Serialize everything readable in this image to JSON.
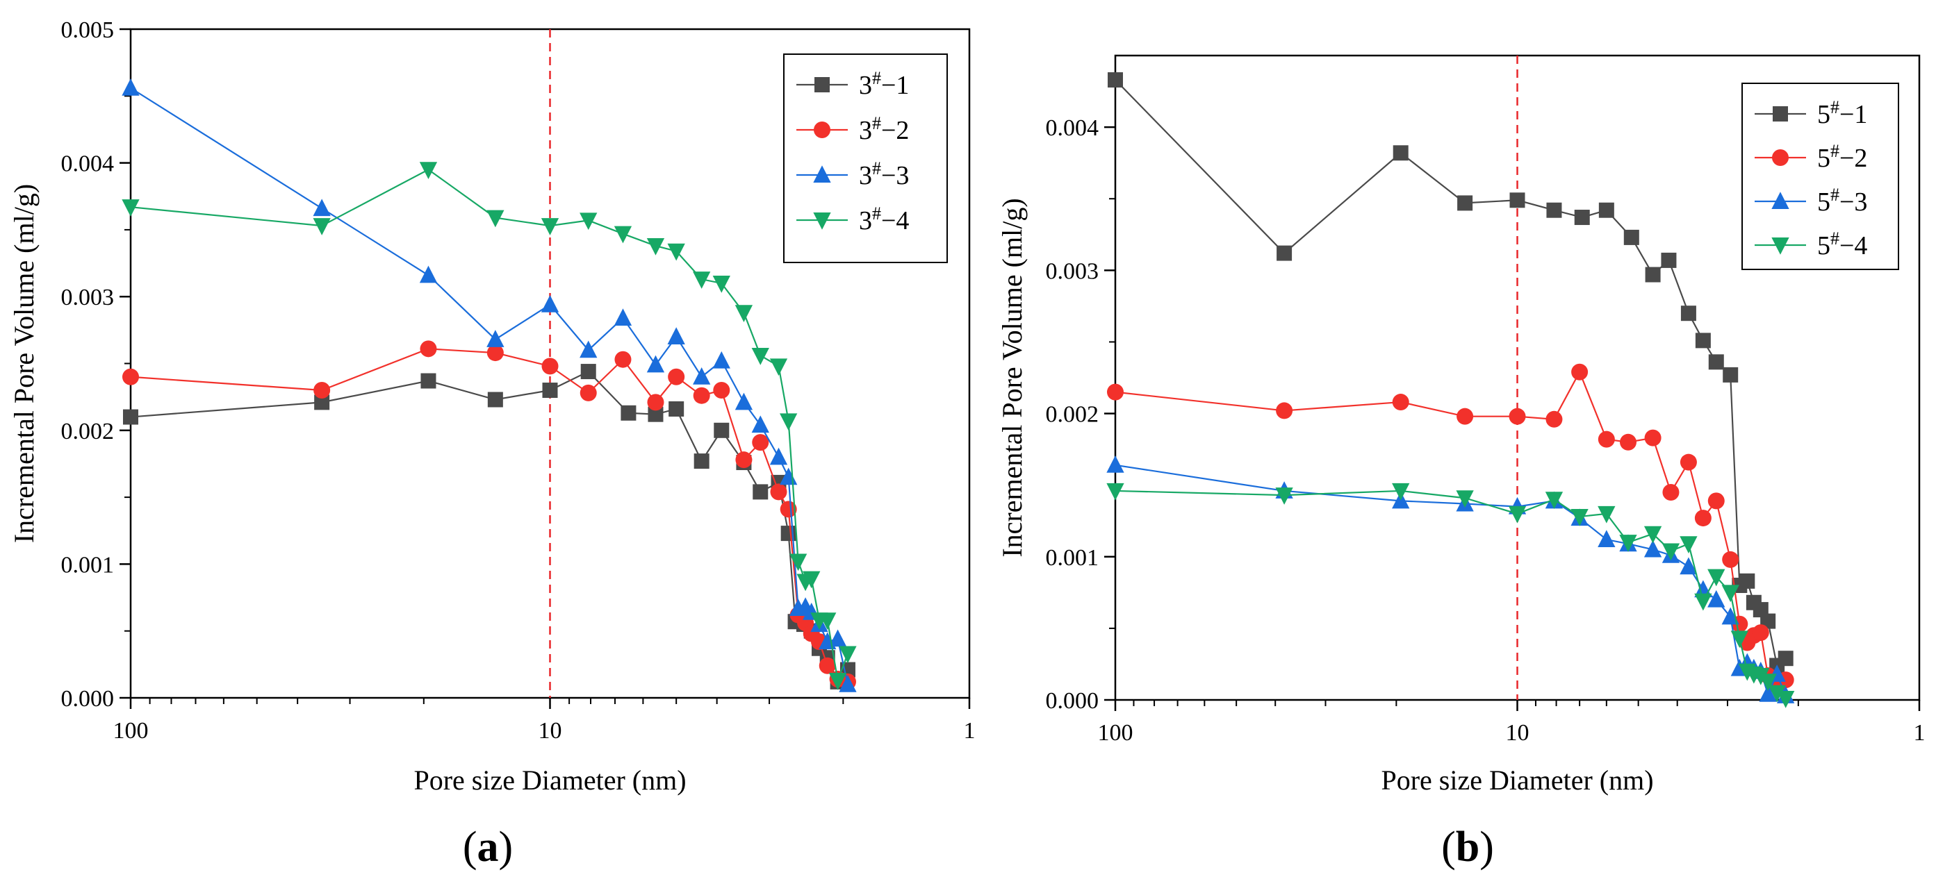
{
  "chart_data": [
    {
      "type": "line",
      "panel_label": "(a)",
      "xlabel": "Pore size Diameter (nm)",
      "ylabel": "Incremental Pore Volume (ml/g)",
      "x_scale": "log",
      "x_reversed": true,
      "xlim": [
        100,
        1
      ],
      "ylim": [
        0,
        0.005
      ],
      "xticks": [
        "100",
        "10",
        "1"
      ],
      "yticks": [
        "0.000",
        "0.001",
        "0.002",
        "0.003",
        "0.004",
        "0.005"
      ],
      "reference_line": {
        "x": 10,
        "color": "#e8262a",
        "style": "dashed"
      },
      "legend_position": "top-right",
      "grid": false,
      "series": [
        {
          "name": "3#−1",
          "name_base": "3",
          "name_sup": "#",
          "name_tail": "−1",
          "color": "#4a4a4a",
          "marker": "square",
          "points": [
            [
              100,
              0.0021
            ],
            [
              35,
              0.00221
            ],
            [
              19.5,
              0.00237
            ],
            [
              13.5,
              0.00223
            ],
            [
              10,
              0.0023
            ],
            [
              8.1,
              0.00244
            ],
            [
              6.5,
              0.00213
            ],
            [
              5.6,
              0.00212
            ],
            [
              5.0,
              0.00216
            ],
            [
              4.35,
              0.00177
            ],
            [
              3.9,
              0.002
            ],
            [
              3.45,
              0.00176
            ],
            [
              3.15,
              0.00154
            ],
            [
              2.85,
              0.00161
            ],
            [
              2.7,
              0.00123
            ],
            [
              2.6,
              0.00057
            ],
            [
              2.48,
              0.00055
            ],
            [
              2.38,
              0.0005
            ],
            [
              2.28,
              0.00037
            ],
            [
              2.18,
              0.0003
            ],
            [
              2.06,
              0.00012
            ],
            [
              1.95,
              0.00021
            ]
          ]
        },
        {
          "name": "3#−2",
          "name_base": "3",
          "name_sup": "#",
          "name_tail": "−2",
          "color": "#f2312b",
          "marker": "circle",
          "points": [
            [
              100,
              0.0024
            ],
            [
              35,
              0.0023
            ],
            [
              19.5,
              0.00261
            ],
            [
              13.5,
              0.00258
            ],
            [
              10,
              0.00248
            ],
            [
              8.1,
              0.00228
            ],
            [
              6.7,
              0.00253
            ],
            [
              5.6,
              0.00221
            ],
            [
              5.0,
              0.0024
            ],
            [
              4.35,
              0.00226
            ],
            [
              3.9,
              0.0023
            ],
            [
              3.45,
              0.00178
            ],
            [
              3.15,
              0.00191
            ],
            [
              2.85,
              0.00154
            ],
            [
              2.7,
              0.00141
            ],
            [
              2.56,
              0.00062
            ],
            [
              2.46,
              0.00056
            ],
            [
              2.38,
              0.00048
            ],
            [
              2.28,
              0.00042
            ],
            [
              2.18,
              0.00024
            ],
            [
              2.06,
              0.00014
            ],
            [
              1.95,
              0.00012
            ]
          ]
        },
        {
          "name": "3#−3",
          "name_base": "3",
          "name_sup": "#",
          "name_tail": "−3",
          "color": "#1a6ddb",
          "marker": "triangle-up",
          "points": [
            [
              100,
              0.00456
            ],
            [
              35,
              0.00366
            ],
            [
              19.5,
              0.00316
            ],
            [
              13.5,
              0.00268
            ],
            [
              10,
              0.00294
            ],
            [
              8.1,
              0.0026
            ],
            [
              6.7,
              0.00284
            ],
            [
              5.6,
              0.00249
            ],
            [
              5.0,
              0.0027
            ],
            [
              4.35,
              0.0024
            ],
            [
              3.9,
              0.00252
            ],
            [
              3.45,
              0.00221
            ],
            [
              3.15,
              0.00204
            ],
            [
              2.85,
              0.0018
            ],
            [
              2.7,
              0.00165
            ],
            [
              2.56,
              0.00067
            ],
            [
              2.46,
              0.00068
            ],
            [
              2.38,
              0.00064
            ],
            [
              2.28,
              0.00055
            ],
            [
              2.18,
              0.00042
            ],
            [
              2.06,
              0.00044
            ],
            [
              1.95,
              0.0001
            ]
          ]
        },
        {
          "name": "3#−4",
          "name_base": "3",
          "name_sup": "#",
          "name_tail": "−4",
          "color": "#17a865",
          "marker": "triangle-down",
          "points": [
            [
              100,
              0.00367
            ],
            [
              35,
              0.00353
            ],
            [
              19.5,
              0.00395
            ],
            [
              13.5,
              0.00359
            ],
            [
              10,
              0.00353
            ],
            [
              8.1,
              0.00357
            ],
            [
              6.7,
              0.00347
            ],
            [
              5.6,
              0.00338
            ],
            [
              5.0,
              0.00334
            ],
            [
              4.35,
              0.00313
            ],
            [
              3.9,
              0.0031
            ],
            [
              3.45,
              0.00288
            ],
            [
              3.15,
              0.00256
            ],
            [
              2.85,
              0.00248
            ],
            [
              2.7,
              0.00207
            ],
            [
              2.56,
              0.00102
            ],
            [
              2.46,
              0.00087
            ],
            [
              2.38,
              0.00089
            ],
            [
              2.28,
              0.00058
            ],
            [
              2.18,
              0.00058
            ],
            [
              2.06,
              0.00013
            ],
            [
              1.95,
              0.00033
            ]
          ]
        }
      ]
    },
    {
      "type": "line",
      "panel_label": "(b)",
      "xlabel": "Pore size Diameter (nm)",
      "ylabel": "Incremental Pore Volume (ml/g)",
      "x_scale": "log",
      "x_reversed": true,
      "xlim": [
        100,
        1
      ],
      "ylim": [
        0,
        0.0045
      ],
      "xticks": [
        "100",
        "10",
        "1"
      ],
      "yticks": [
        "0.000",
        "0.001",
        "0.002",
        "0.003",
        "0.004"
      ],
      "reference_line": {
        "x": 10,
        "color": "#e8262a",
        "style": "dashed"
      },
      "legend_position": "top-right",
      "grid": false,
      "series": [
        {
          "name": "5#−1",
          "name_base": "5",
          "name_sup": "#",
          "name_tail": "−1",
          "color": "#4a4a4a",
          "marker": "square",
          "points": [
            [
              100,
              0.00433
            ],
            [
              38,
              0.00312
            ],
            [
              19.5,
              0.00382
            ],
            [
              13.5,
              0.00347
            ],
            [
              10,
              0.00349
            ],
            [
              8.1,
              0.00342
            ],
            [
              6.9,
              0.00337
            ],
            [
              6.0,
              0.00342
            ],
            [
              5.2,
              0.00323
            ],
            [
              4.6,
              0.00297
            ],
            [
              4.2,
              0.00307
            ],
            [
              3.75,
              0.0027
            ],
            [
              3.45,
              0.00251
            ],
            [
              3.2,
              0.00236
            ],
            [
              2.95,
              0.00227
            ],
            [
              2.8,
              0.0008
            ],
            [
              2.68,
              0.00083
            ],
            [
              2.58,
              0.00068
            ],
            [
              2.48,
              0.00063
            ],
            [
              2.38,
              0.00055
            ],
            [
              2.26,
              0.00024
            ],
            [
              2.15,
              0.00029
            ]
          ]
        },
        {
          "name": "5#−2",
          "name_base": "5",
          "name_sup": "#",
          "name_tail": "−2",
          "color": "#f2312b",
          "marker": "circle",
          "points": [
            [
              100,
              0.00215
            ],
            [
              38,
              0.00202
            ],
            [
              19.5,
              0.00208
            ],
            [
              13.5,
              0.00198
            ],
            [
              10,
              0.00198
            ],
            [
              8.1,
              0.00196
            ],
            [
              7.0,
              0.00229
            ],
            [
              6.0,
              0.00182
            ],
            [
              5.3,
              0.0018
            ],
            [
              4.6,
              0.00183
            ],
            [
              4.15,
              0.00145
            ],
            [
              3.75,
              0.00166
            ],
            [
              3.45,
              0.00127
            ],
            [
              3.2,
              0.00139
            ],
            [
              2.95,
              0.00098
            ],
            [
              2.8,
              0.00053
            ],
            [
              2.68,
              0.0004
            ],
            [
              2.58,
              0.00045
            ],
            [
              2.48,
              0.00047
            ],
            [
              2.38,
              0.00017
            ],
            [
              2.26,
              0.0001
            ],
            [
              2.15,
              0.00014
            ]
          ]
        },
        {
          "name": "5#−3",
          "name_base": "5",
          "name_sup": "#",
          "name_tail": "−3",
          "color": "#1a6ddb",
          "marker": "triangle-up",
          "points": [
            [
              100,
              0.00164
            ],
            [
              38,
              0.00146
            ],
            [
              19.5,
              0.00139
            ],
            [
              13.5,
              0.00137
            ],
            [
              10,
              0.00135
            ],
            [
              8.1,
              0.00139
            ],
            [
              7.0,
              0.00127
            ],
            [
              6.0,
              0.00112
            ],
            [
              5.3,
              0.00109
            ],
            [
              4.6,
              0.00105
            ],
            [
              4.15,
              0.00101
            ],
            [
              3.75,
              0.00093
            ],
            [
              3.45,
              0.00077
            ],
            [
              3.2,
              0.0007
            ],
            [
              2.95,
              0.00058
            ],
            [
              2.8,
              0.00022
            ],
            [
              2.68,
              0.00026
            ],
            [
              2.58,
              0.00022
            ],
            [
              2.48,
              0.0002
            ],
            [
              2.38,
              4e-05
            ],
            [
              2.26,
              0.00018
            ],
            [
              2.15,
              3e-05
            ]
          ]
        },
        {
          "name": "5#−4",
          "name_base": "5",
          "name_sup": "#",
          "name_tail": "−4",
          "color": "#17a865",
          "marker": "triangle-down",
          "points": [
            [
              100,
              0.00146
            ],
            [
              38,
              0.00143
            ],
            [
              19.5,
              0.00146
            ],
            [
              13.5,
              0.00141
            ],
            [
              10,
              0.0013
            ],
            [
              8.1,
              0.0014
            ],
            [
              7.0,
              0.00128
            ],
            [
              6.0,
              0.0013
            ],
            [
              5.3,
              0.0011
            ],
            [
              4.6,
              0.00116
            ],
            [
              4.15,
              0.00104
            ],
            [
              3.75,
              0.00109
            ],
            [
              3.45,
              0.00069
            ],
            [
              3.2,
              0.00086
            ],
            [
              2.95,
              0.00075
            ],
            [
              2.8,
              0.00043
            ],
            [
              2.68,
              0.0002
            ],
            [
              2.58,
              0.00018
            ],
            [
              2.48,
              0.00017
            ],
            [
              2.38,
              0.00013
            ],
            [
              2.26,
              5e-05
            ],
            [
              2.15,
              1e-05
            ]
          ]
        }
      ]
    }
  ]
}
